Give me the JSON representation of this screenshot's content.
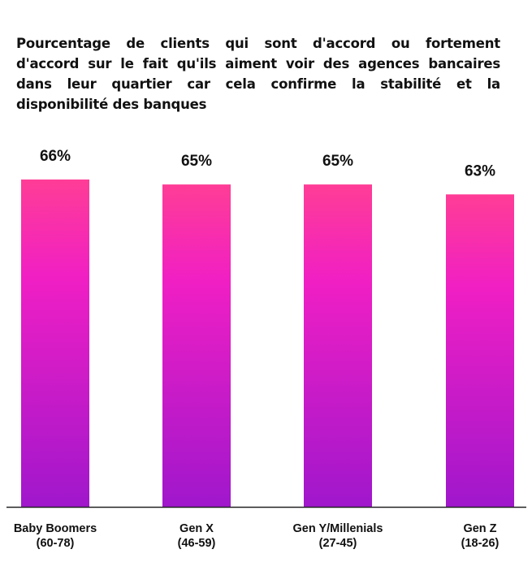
{
  "chart_data": {
    "type": "bar",
    "title_lines": [
      "Pourcentage de clients qui sont d'accord ou fortement",
      "d'accord sur le fait qu'ils aiment voir des agences bancaires",
      "dans leur quartier car cela confirme la stabilité et la",
      "disponibilité des banques"
    ],
    "categories": [
      [
        "Baby Boomers",
        "(60-78)"
      ],
      [
        "Gen X",
        "(46-59)"
      ],
      [
        "Gen Y/Millenials",
        "(27-45)"
      ],
      [
        "Gen Z",
        "(18-26)"
      ]
    ],
    "values": [
      66,
      65,
      65,
      63
    ],
    "value_labels": [
      "66%",
      "65%",
      "65%",
      "63%"
    ],
    "unit": "%",
    "ylim": [
      0,
      66
    ],
    "grid": false,
    "colors": {
      "gradient_top": "#ff3d96",
      "gradient_mid": "#f01fc4",
      "gradient_bottom": "#a017cc",
      "axis": "#222222"
    }
  }
}
